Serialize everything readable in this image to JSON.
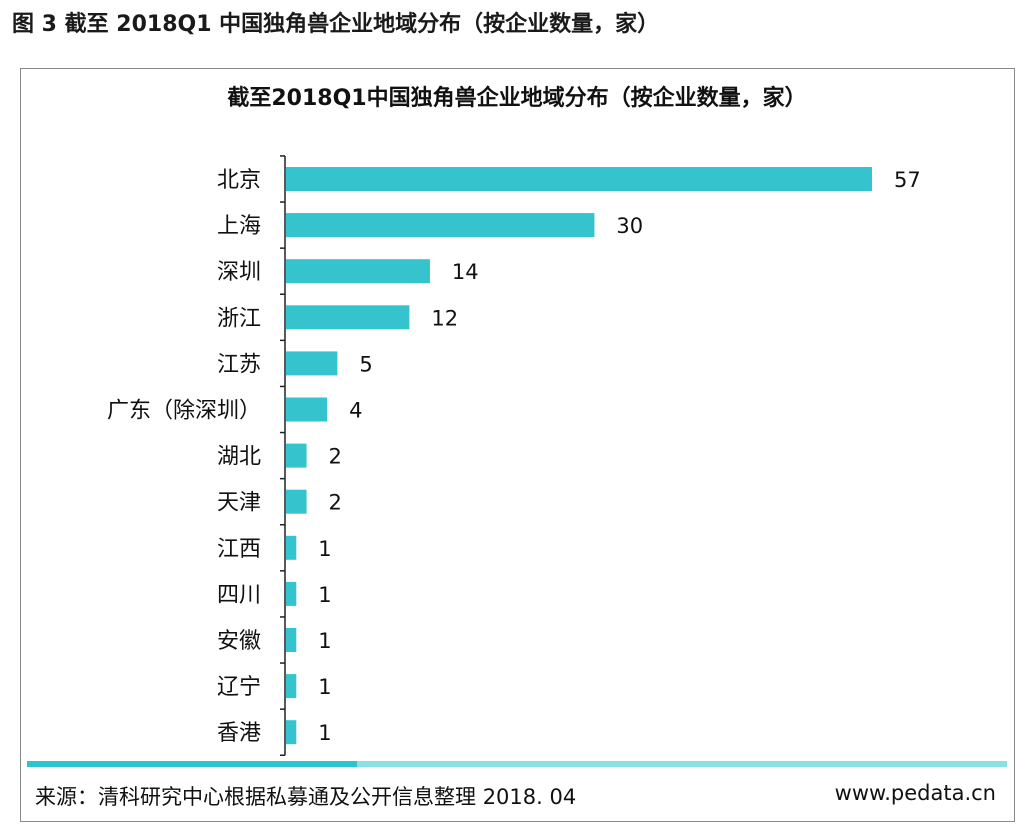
{
  "figure_caption": "图 3 截至 2018Q1 中国独角兽企业地域分布（按企业数量，家）",
  "source": {
    "text": "来源：清科研究中心根据私募通及公开信息整理",
    "date": "2018. 04",
    "site": "www.pedata.cn"
  },
  "colors": {
    "bar": "#35c3cd",
    "axis": "#222222"
  },
  "chart_data": {
    "type": "bar",
    "orientation": "horizontal",
    "title": "截至2018Q1中国独角兽企业地域分布（按企业数量，家）",
    "xlabel": "",
    "ylabel": "",
    "categories": [
      "北京",
      "上海",
      "深圳",
      "浙江",
      "江苏",
      "广东（除深圳）",
      "湖北",
      "天津",
      "江西",
      "四川",
      "安徽",
      "辽宁",
      "香港"
    ],
    "values": [
      57,
      30,
      14,
      12,
      5,
      4,
      2,
      2,
      1,
      1,
      1,
      1,
      1
    ],
    "xlim": [
      0,
      57
    ],
    "grid": false,
    "legend": "none",
    "data_labels": true
  }
}
